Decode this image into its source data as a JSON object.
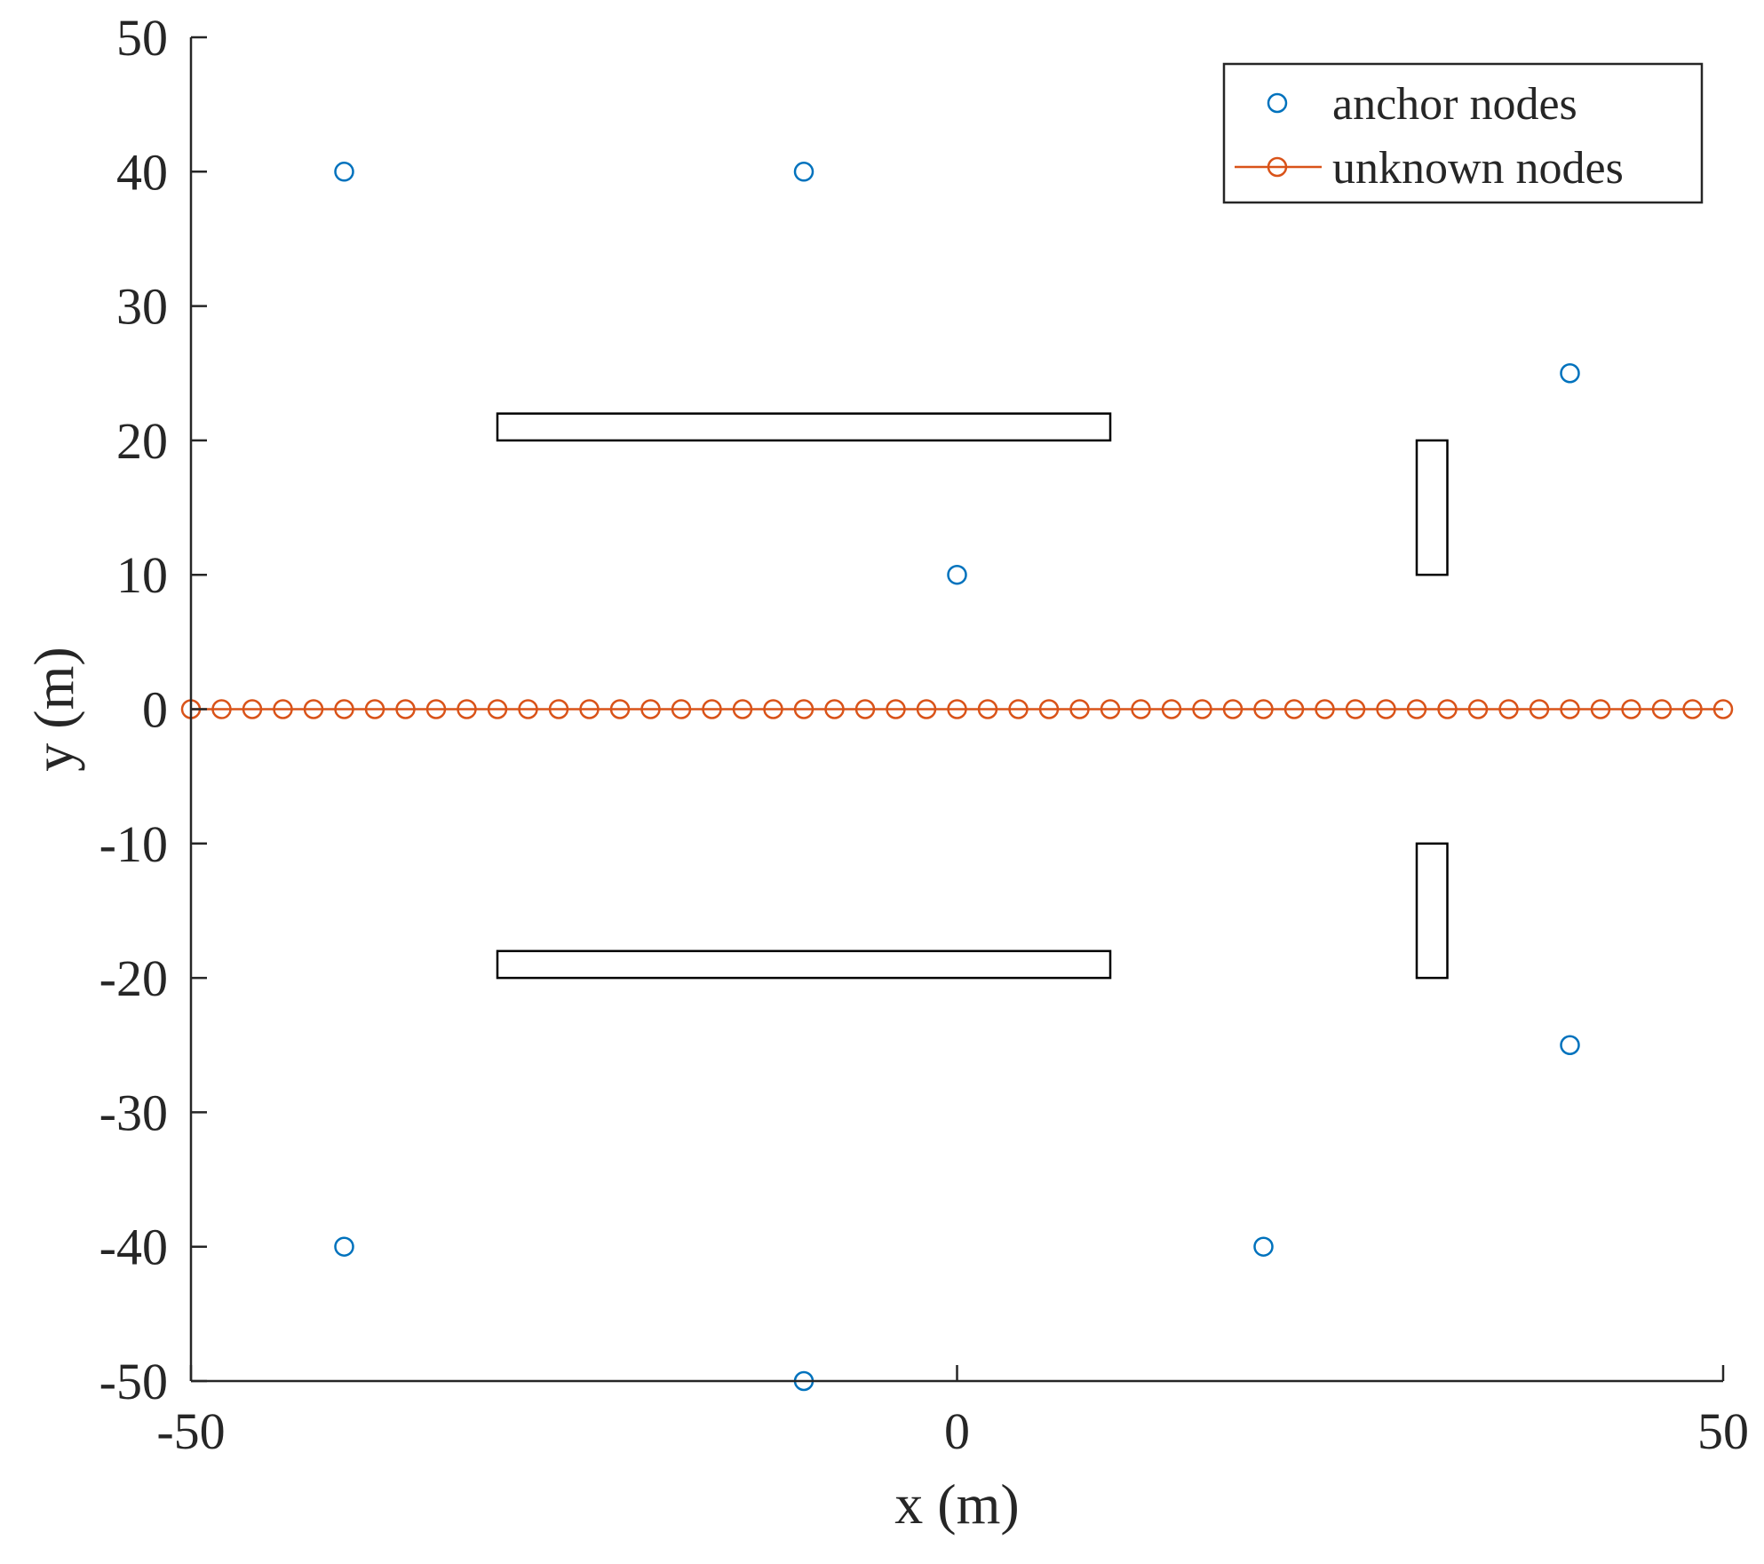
{
  "chart_data": {
    "type": "scatter",
    "xlabel": "x (m)",
    "ylabel": "y (m)",
    "xlim": [
      -50,
      50
    ],
    "ylim": [
      -50,
      50
    ],
    "xticks": [
      -50,
      0,
      50
    ],
    "yticks": [
      -50,
      -40,
      -30,
      -20,
      -10,
      0,
      10,
      20,
      30,
      40,
      50
    ],
    "grid": false,
    "legend_position": "top-right",
    "series": [
      {
        "name": "anchor nodes",
        "style": "markers",
        "color": "#0072BD",
        "x": [
          -40,
          -10,
          40,
          0,
          -40,
          -10,
          20,
          40
        ],
        "y": [
          40,
          40,
          25,
          10,
          -40,
          -50,
          -40,
          -25
        ]
      },
      {
        "name": "unknown nodes",
        "style": "line-markers",
        "color": "#D95319",
        "x": [
          -50,
          -48,
          -46,
          -44,
          -42,
          -40,
          -38,
          -36,
          -34,
          -32,
          -30,
          -28,
          -26,
          -24,
          -22,
          -20,
          -18,
          -16,
          -14,
          -12,
          -10,
          -8,
          -6,
          -4,
          -2,
          0,
          2,
          4,
          6,
          8,
          10,
          12,
          14,
          16,
          18,
          20,
          22,
          24,
          26,
          28,
          30,
          32,
          34,
          36,
          38,
          40,
          42,
          44,
          46,
          48,
          50
        ],
        "y": [
          0,
          0,
          0,
          0,
          0,
          0,
          0,
          0,
          0,
          0,
          0,
          0,
          0,
          0,
          0,
          0,
          0,
          0,
          0,
          0,
          0,
          0,
          0,
          0,
          0,
          0,
          0,
          0,
          0,
          0,
          0,
          0,
          0,
          0,
          0,
          0,
          0,
          0,
          0,
          0,
          0,
          0,
          0,
          0,
          0,
          0,
          0,
          0,
          0,
          0,
          0
        ]
      }
    ],
    "obstacles": [
      {
        "x1": -30,
        "x2": 10,
        "y1": 20,
        "y2": 22
      },
      {
        "x1": -30,
        "x2": 10,
        "y1": -20,
        "y2": -18
      },
      {
        "x1": 30,
        "x2": 32,
        "y1": 10,
        "y2": 20
      },
      {
        "x1": 30,
        "x2": 32,
        "y1": -20,
        "y2": -10
      }
    ]
  }
}
